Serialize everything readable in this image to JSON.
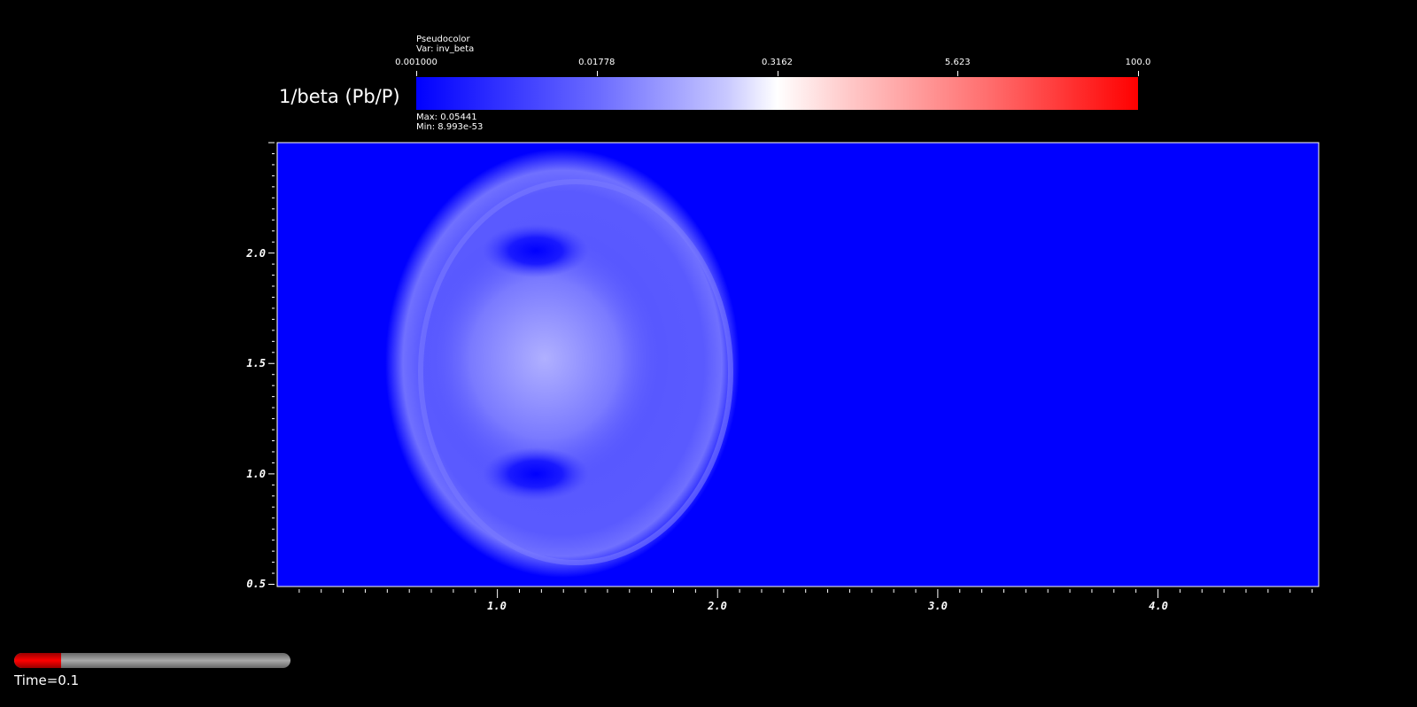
{
  "legend": {
    "plot_type": "Pseudocolor",
    "variable": "Var: inv_beta",
    "title": "1/beta (Pb/P)",
    "tick_labels": [
      "0.001000",
      "0.01778",
      "0.3162",
      "5.623",
      "100.0"
    ],
    "max": "Max:  0.05441",
    "min": "Min:  8.993e-53",
    "scale": "log",
    "colors": [
      "#0000ff",
      "#ffffff",
      "#ff0000"
    ]
  },
  "axes": {
    "x_tick_labels": [
      "1.0",
      "2.0",
      "3.0",
      "4.0"
    ],
    "y_tick_labels": [
      "0.5",
      "1.0",
      "1.5",
      "2.0"
    ],
    "xlim": [
      0.0,
      4.73
    ],
    "ylim": [
      0.49,
      2.5
    ]
  },
  "field_colors": {
    "background": "#0000ff",
    "highlight": "#b0b0ff"
  },
  "time_slider": {
    "label": "Time=0.1",
    "progress": 0.17
  }
}
